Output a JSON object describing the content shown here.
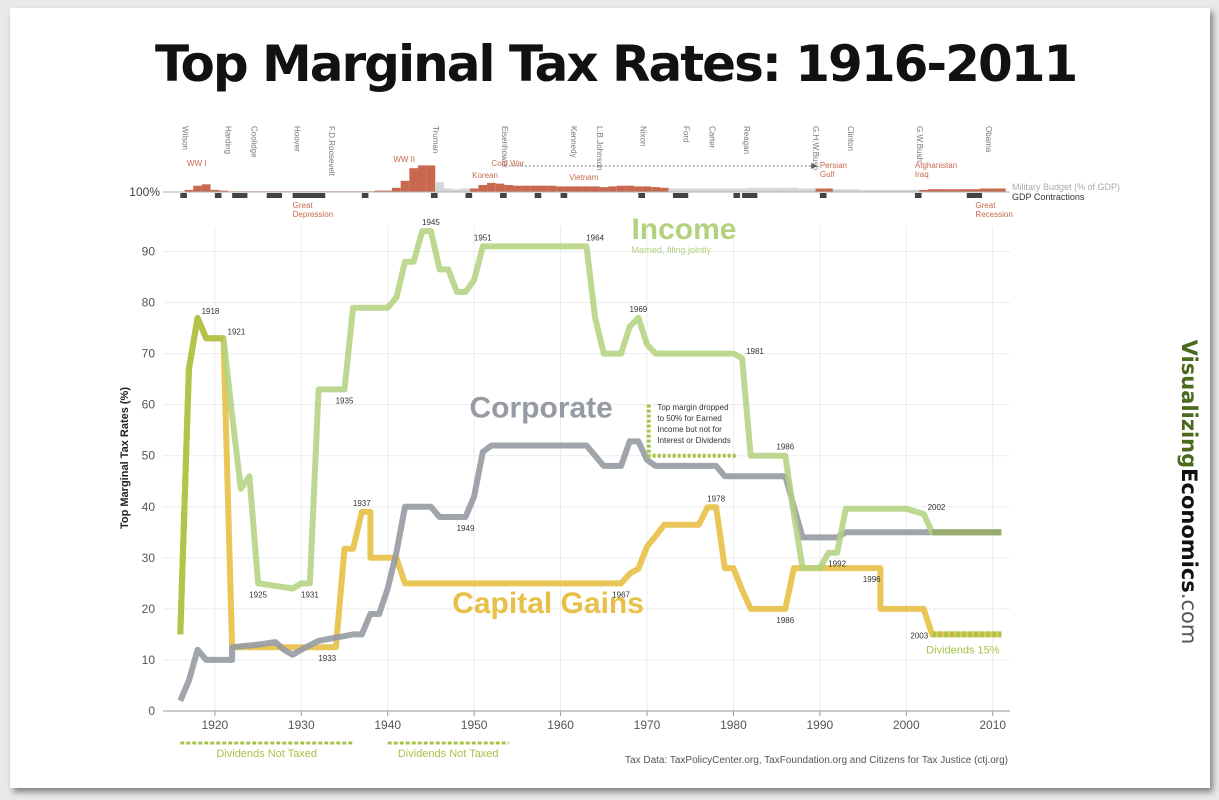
{
  "title": "Top Marginal Tax Rates: 1916-2011",
  "source": "Tax Data:  TaxPolicyCenter.org, TaxFoundation.org and Citizens for Tax Justice (ctj.org)",
  "brand": {
    "part1": "Visualizing",
    "part2": "Economics",
    "part3": ".com"
  },
  "colors": {
    "income": "#b2d27e",
    "corporate": "#969aa2",
    "capital": "#e8c047",
    "dividends": "#a6c34a",
    "military": "#c8694f",
    "contraction": "#444444",
    "brand_green": "#4a6b1e"
  },
  "timeline": {
    "presidents": [
      {
        "name": "Wilson",
        "year": 1916
      },
      {
        "name": "Harding",
        "year": 1921
      },
      {
        "name": "Coolidge",
        "year": 1924
      },
      {
        "name": "Hoover",
        "year": 1929
      },
      {
        "name": "F.D.Roosevelt",
        "year": 1933
      },
      {
        "name": "Truman",
        "year": 1945
      },
      {
        "name": "Eisenhower",
        "year": 1953
      },
      {
        "name": "Kennedy",
        "year": 1961
      },
      {
        "name": "L.B.Johnson",
        "year": 1964
      },
      {
        "name": "Nixon",
        "year": 1969
      },
      {
        "name": "Ford",
        "year": 1974
      },
      {
        "name": "Carter",
        "year": 1977
      },
      {
        "name": "Reagan",
        "year": 1981
      },
      {
        "name": "G.H.W.Bush",
        "year": 1989
      },
      {
        "name": "Clinton",
        "year": 1993
      },
      {
        "name": "G.W.Bush",
        "year": 2001
      },
      {
        "name": "Obama",
        "year": 2009
      }
    ],
    "events": [
      {
        "lines": [
          "WW I"
        ],
        "year": 1917
      },
      {
        "lines": [
          "WW II"
        ],
        "year": 1941
      },
      {
        "lines": [
          "Korean"
        ],
        "year": 1950
      },
      {
        "lines": [
          "Cold War"
        ],
        "year": 1952
      },
      {
        "lines": [
          "Vietnam"
        ],
        "year": 1961
      },
      {
        "lines": [
          "Great",
          "Depression"
        ],
        "year": 1929
      },
      {
        "lines": [
          "Persian",
          "Gulf"
        ],
        "year": 1990
      },
      {
        "lines": [
          "Afghanistan",
          "Iraq"
        ],
        "year": 2001
      },
      {
        "lines": [
          "Great",
          "Recession"
        ],
        "year": 2008
      }
    ],
    "baseline_label": "100%",
    "legend": {
      "military": "Military Budget (% of GDP)",
      "contractions": "GDP Contractions"
    },
    "military_budget": [
      [
        1917,
        3
      ],
      [
        1918,
        9
      ],
      [
        1919,
        11
      ],
      [
        1920,
        3
      ],
      [
        1921,
        2
      ],
      [
        1922,
        1
      ],
      [
        1923,
        1
      ],
      [
        1924,
        1
      ],
      [
        1925,
        1
      ],
      [
        1926,
        1
      ],
      [
        1927,
        1
      ],
      [
        1928,
        1
      ],
      [
        1929,
        1
      ],
      [
        1930,
        1
      ],
      [
        1931,
        1
      ],
      [
        1932,
        1
      ],
      [
        1933,
        1
      ],
      [
        1934,
        1
      ],
      [
        1935,
        1
      ],
      [
        1936,
        1
      ],
      [
        1937,
        1
      ],
      [
        1938,
        1
      ],
      [
        1939,
        2
      ],
      [
        1940,
        2
      ],
      [
        1941,
        6
      ],
      [
        1942,
        16
      ],
      [
        1943,
        34
      ],
      [
        1944,
        38
      ],
      [
        1945,
        38
      ],
      [
        1946,
        14
      ],
      [
        1947,
        5
      ],
      [
        1948,
        4
      ],
      [
        1949,
        5
      ],
      [
        1950,
        5
      ],
      [
        1951,
        10
      ],
      [
        1952,
        13
      ],
      [
        1953,
        12
      ],
      [
        1954,
        10
      ],
      [
        1955,
        9
      ],
      [
        1956,
        9
      ],
      [
        1957,
        9
      ],
      [
        1958,
        9
      ],
      [
        1959,
        9
      ],
      [
        1960,
        8
      ],
      [
        1961,
        8
      ],
      [
        1962,
        8
      ],
      [
        1963,
        8
      ],
      [
        1964,
        8
      ],
      [
        1965,
        7
      ],
      [
        1966,
        8
      ],
      [
        1967,
        9
      ],
      [
        1968,
        9
      ],
      [
        1969,
        8
      ],
      [
        1970,
        8
      ],
      [
        1971,
        7
      ],
      [
        1972,
        6
      ],
      [
        1973,
        5
      ],
      [
        1974,
        5
      ],
      [
        1975,
        5
      ],
      [
        1976,
        5
      ],
      [
        1977,
        5
      ],
      [
        1978,
        5
      ],
      [
        1979,
        5
      ],
      [
        1980,
        5
      ],
      [
        1981,
        5
      ],
      [
        1982,
        6
      ],
      [
        1983,
        6
      ],
      [
        1984,
        6
      ],
      [
        1985,
        6
      ],
      [
        1986,
        6
      ],
      [
        1987,
        6
      ],
      [
        1988,
        5
      ],
      [
        1989,
        5
      ],
      [
        1990,
        5
      ],
      [
        1991,
        5
      ],
      [
        1992,
        4
      ],
      [
        1993,
        4
      ],
      [
        1994,
        4
      ],
      [
        1995,
        3
      ],
      [
        1996,
        3
      ],
      [
        1997,
        3
      ],
      [
        1998,
        3
      ],
      [
        1999,
        3
      ],
      [
        2000,
        3
      ],
      [
        2001,
        3
      ],
      [
        2002,
        3
      ],
      [
        2003,
        4
      ],
      [
        2004,
        4
      ],
      [
        2005,
        4
      ],
      [
        2006,
        4
      ],
      [
        2007,
        4
      ],
      [
        2008,
        4
      ],
      [
        2009,
        5
      ],
      [
        2010,
        5
      ],
      [
        2011,
        5
      ]
    ],
    "gdp_contractions": [
      [
        1916,
        1917
      ],
      [
        1920,
        1921
      ],
      [
        1922,
        1924
      ],
      [
        1926,
        1928
      ],
      [
        1929,
        1933
      ],
      [
        1937,
        1938
      ],
      [
        1945,
        1946
      ],
      [
        1949,
        1950
      ],
      [
        1953,
        1954
      ],
      [
        1957,
        1958
      ],
      [
        1960,
        1961
      ],
      [
        1969,
        1970
      ],
      [
        1973,
        1975
      ],
      [
        1980,
        1981
      ],
      [
        1981,
        1983
      ],
      [
        1990,
        1991
      ],
      [
        2001,
        2002
      ],
      [
        2007,
        2009
      ]
    ]
  },
  "chart_data": {
    "type": "line",
    "ylabel": "Top Marginal Tax Rates (%)",
    "xlim": [
      1914,
      2012
    ],
    "ylim": [
      0,
      95
    ],
    "xticks": [
      1920,
      1930,
      1940,
      1950,
      1960,
      1970,
      1980,
      1990,
      2000,
      2010
    ],
    "yticks": [
      0,
      10,
      20,
      30,
      40,
      50,
      60,
      70,
      80,
      90
    ],
    "series": [
      {
        "name": "Income",
        "label": "Income",
        "sublabel": "Married, filing jointly",
        "color": "#b2d27e",
        "points": [
          [
            1916,
            15
          ],
          [
            1917,
            67
          ],
          [
            1918,
            77
          ],
          [
            1919,
            73
          ],
          [
            1921,
            73
          ],
          [
            1922,
            58
          ],
          [
            1923,
            43.5
          ],
          [
            1924,
            46
          ],
          [
            1925,
            25
          ],
          [
            1929,
            24
          ],
          [
            1930,
            25
          ],
          [
            1931,
            25
          ],
          [
            1932,
            63
          ],
          [
            1935,
            63
          ],
          [
            1936,
            79
          ],
          [
            1940,
            79
          ],
          [
            1941,
            81
          ],
          [
            1942,
            88
          ],
          [
            1943,
            88
          ],
          [
            1944,
            94
          ],
          [
            1945,
            94
          ],
          [
            1946,
            86.5
          ],
          [
            1947,
            86.5
          ],
          [
            1948,
            82.1
          ],
          [
            1949,
            82.1
          ],
          [
            1950,
            84.4
          ],
          [
            1951,
            91
          ],
          [
            1963,
            91
          ],
          [
            1964,
            77
          ],
          [
            1965,
            70
          ],
          [
            1967,
            70
          ],
          [
            1968,
            75.3
          ],
          [
            1969,
            77
          ],
          [
            1970,
            71.8
          ],
          [
            1971,
            70
          ],
          [
            1980,
            70
          ],
          [
            1981,
            69.1
          ],
          [
            1982,
            50
          ],
          [
            1986,
            50
          ],
          [
            1987,
            38.5
          ],
          [
            1988,
            28
          ],
          [
            1990,
            28
          ],
          [
            1991,
            31
          ],
          [
            1992,
            31
          ],
          [
            1993,
            39.6
          ],
          [
            2000,
            39.6
          ],
          [
            2001,
            39.1
          ],
          [
            2002,
            38.6
          ],
          [
            2003,
            35
          ],
          [
            2011,
            35
          ]
        ]
      },
      {
        "name": "Corporate",
        "label": "Corporate",
        "color": "#969aa2",
        "points": [
          [
            1916,
            2
          ],
          [
            1917,
            6
          ],
          [
            1918,
            12
          ],
          [
            1919,
            10
          ],
          [
            1922,
            10
          ],
          [
            1922,
            12.5
          ],
          [
            1925,
            13
          ],
          [
            1927,
            13.5
          ],
          [
            1928,
            12
          ],
          [
            1929,
            11
          ],
          [
            1930,
            12
          ],
          [
            1932,
            13.75
          ],
          [
            1936,
            15
          ],
          [
            1937,
            15
          ],
          [
            1938,
            19
          ],
          [
            1939,
            19
          ],
          [
            1940,
            24
          ],
          [
            1941,
            31
          ],
          [
            1942,
            40
          ],
          [
            1945,
            40
          ],
          [
            1946,
            38
          ],
          [
            1949,
            38
          ],
          [
            1950,
            42
          ],
          [
            1951,
            50.75
          ],
          [
            1952,
            52
          ],
          [
            1963,
            52
          ],
          [
            1964,
            50
          ],
          [
            1965,
            48
          ],
          [
            1967,
            48
          ],
          [
            1968,
            52.8
          ],
          [
            1969,
            52.8
          ],
          [
            1970,
            49.2
          ],
          [
            1971,
            48
          ],
          [
            1978,
            48
          ],
          [
            1979,
            46
          ],
          [
            1986,
            46
          ],
          [
            1987,
            40
          ],
          [
            1988,
            34
          ],
          [
            1992,
            34
          ],
          [
            1993,
            35
          ],
          [
            2011,
            35
          ]
        ]
      },
      {
        "name": "Capital Gains",
        "label": "Capital Gains",
        "color": "#e8c047",
        "points": [
          [
            1916,
            15
          ],
          [
            1917,
            67
          ],
          [
            1918,
            77
          ],
          [
            1919,
            73
          ],
          [
            1921,
            73
          ],
          [
            1922,
            12.5
          ],
          [
            1934,
            12.5
          ],
          [
            1935,
            31.8
          ],
          [
            1936,
            31.8
          ],
          [
            1937,
            39
          ],
          [
            1938,
            39
          ],
          [
            1938,
            30
          ],
          [
            1941,
            30
          ],
          [
            1942,
            25
          ],
          [
            1967,
            25
          ],
          [
            1968,
            26.9
          ],
          [
            1969,
            27.9
          ],
          [
            1970,
            32.2
          ],
          [
            1971,
            34.25
          ],
          [
            1972,
            36.5
          ],
          [
            1976,
            36.5
          ],
          [
            1977,
            39.9
          ],
          [
            1978,
            39.9
          ],
          [
            1979,
            28
          ],
          [
            1980,
            28
          ],
          [
            1981,
            23.7
          ],
          [
            1982,
            20
          ],
          [
            1986,
            20
          ],
          [
            1987,
            28
          ],
          [
            1997,
            28
          ],
          [
            1997,
            20
          ],
          [
            2002,
            20
          ],
          [
            2003,
            15
          ],
          [
            2011,
            15
          ]
        ]
      },
      {
        "name": "Dividends",
        "label": "Dividends 15%",
        "color": "#a6c34a",
        "dashed": true,
        "points": [
          [
            2003,
            15
          ],
          [
            2011,
            15
          ]
        ]
      }
    ],
    "point_labels": [
      {
        "text": "1918",
        "x": 1918,
        "y": 77,
        "side": "right"
      },
      {
        "text": "1921",
        "x": 1921,
        "y": 73,
        "side": "right"
      },
      {
        "text": "1925",
        "x": 1925,
        "y": 25,
        "side": "below"
      },
      {
        "text": "1931",
        "x": 1931,
        "y": 25,
        "side": "below"
      },
      {
        "text": "1933",
        "x": 1933,
        "y": 12.5,
        "side": "below"
      },
      {
        "text": "1935",
        "x": 1935,
        "y": 63,
        "side": "below"
      },
      {
        "text": "1937",
        "x": 1937,
        "y": 39,
        "side": "above"
      },
      {
        "text": "1945",
        "x": 1945,
        "y": 94,
        "side": "above"
      },
      {
        "text": "1949",
        "x": 1949,
        "y": 38,
        "side": "below"
      },
      {
        "text": "1951",
        "x": 1951,
        "y": 91,
        "side": "above"
      },
      {
        "text": "1964",
        "x": 1964,
        "y": 91,
        "side": "above"
      },
      {
        "text": "1967",
        "x": 1967,
        "y": 25,
        "side": "below"
      },
      {
        "text": "1969",
        "x": 1969,
        "y": 77,
        "side": "above"
      },
      {
        "text": "1978",
        "x": 1978,
        "y": 39.9,
        "side": "above"
      },
      {
        "text": "1981",
        "x": 1981,
        "y": 69.1,
        "side": "right"
      },
      {
        "text": "1986",
        "x": 1986,
        "y": 50,
        "side": "above"
      },
      {
        "text": "1986",
        "x": 1986,
        "y": 20,
        "side": "below"
      },
      {
        "text": "1992",
        "x": 1992,
        "y": 31,
        "side": "below"
      },
      {
        "text": "1996",
        "x": 1996,
        "y": 28,
        "side": "below"
      },
      {
        "text": "2002",
        "x": 2002,
        "y": 38.6,
        "side": "right"
      },
      {
        "text": "2003",
        "x": 2003,
        "y": 15,
        "side": "left"
      }
    ],
    "annotations": {
      "note_lines": [
        "Top margin dropped",
        "to 50% for Earned",
        "Income but not for",
        "Interest or Dividends"
      ],
      "dividends_not_taxed": [
        {
          "label": "Dividends Not Taxed",
          "from": 1916,
          "to": 1936
        },
        {
          "label": "Dividends Not Taxed",
          "from": 1940,
          "to": 1954
        }
      ]
    }
  }
}
